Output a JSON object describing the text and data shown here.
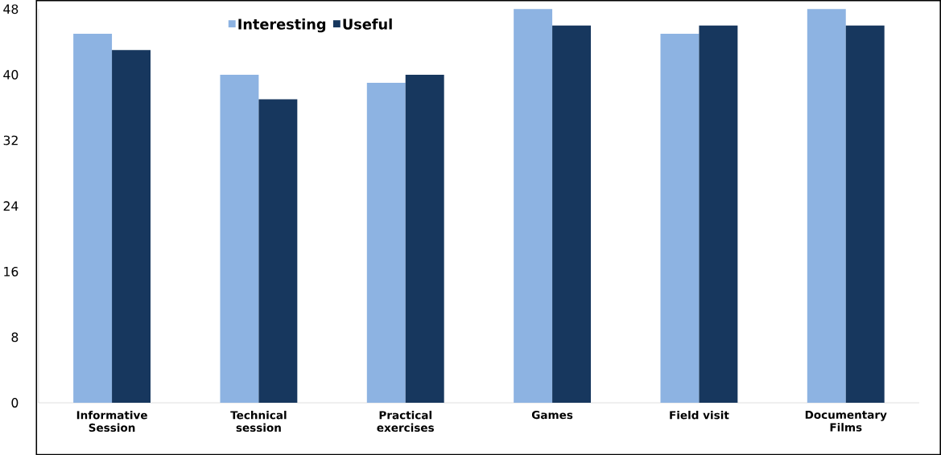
{
  "chart_data": {
    "type": "bar",
    "categories": [
      "Informative Session",
      "Technical session",
      "Practical exercises",
      "Games",
      "Field visit",
      "Documentary Films"
    ],
    "series": [
      {
        "name": "Interesting",
        "color": "#8db3e2",
        "values": [
          45,
          40,
          39,
          48,
          45,
          48
        ]
      },
      {
        "name": "Useful",
        "color": "#17375e",
        "values": [
          43,
          37,
          40,
          46,
          46,
          46
        ]
      }
    ],
    "ylim": [
      0,
      48
    ],
    "yticks": [
      0,
      8,
      16,
      24,
      32,
      40,
      48
    ],
    "grid": false,
    "legend": "top"
  }
}
